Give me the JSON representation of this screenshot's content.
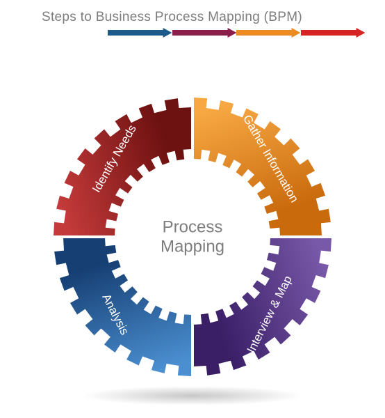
{
  "title": "Steps to Business Process Mapping (BPM)",
  "center_label_line1": "Process",
  "center_label_line2": "Mapping",
  "arrow_colors": [
    "#1d5a8a",
    "#8a1d4a",
    "#ed8a22",
    "#d62323"
  ],
  "gear": {
    "type": "infographic",
    "outer_radius": 200,
    "inner_radius": 112,
    "tooth_depth": 14,
    "teeth_per_quadrant": 8,
    "quad_gap_deg": 1.0,
    "label_radius": 158,
    "label_fontsize": 17,
    "center_fontsize": 24,
    "center_color": "#7d7d7d",
    "quadrants": [
      {
        "label": "Gather Information",
        "grad_start": "#f7a843",
        "grad_end": "#c96a0d",
        "angle_start": -90,
        "angle_end": 0,
        "text_rot_deg": 60,
        "label_flip": false
      },
      {
        "label": "Interview & Map",
        "grad_start": "#7858a8",
        "grad_end": "#3a1e66",
        "angle_start": 0,
        "angle_end": 90,
        "text_rot_deg": -63,
        "label_flip": true
      },
      {
        "label": "Analysis",
        "grad_start": "#4b8fd1",
        "grad_end": "#163f73",
        "angle_start": 90,
        "angle_end": 180,
        "text_rot_deg": 63,
        "label_flip": true
      },
      {
        "label": "Identify Needs",
        "grad_start": "#c43a3a",
        "grad_end": "#6e1111",
        "angle_start": 180,
        "angle_end": 270,
        "text_rot_deg": -60,
        "label_flip": false
      }
    ]
  },
  "background_color": "#ffffff"
}
